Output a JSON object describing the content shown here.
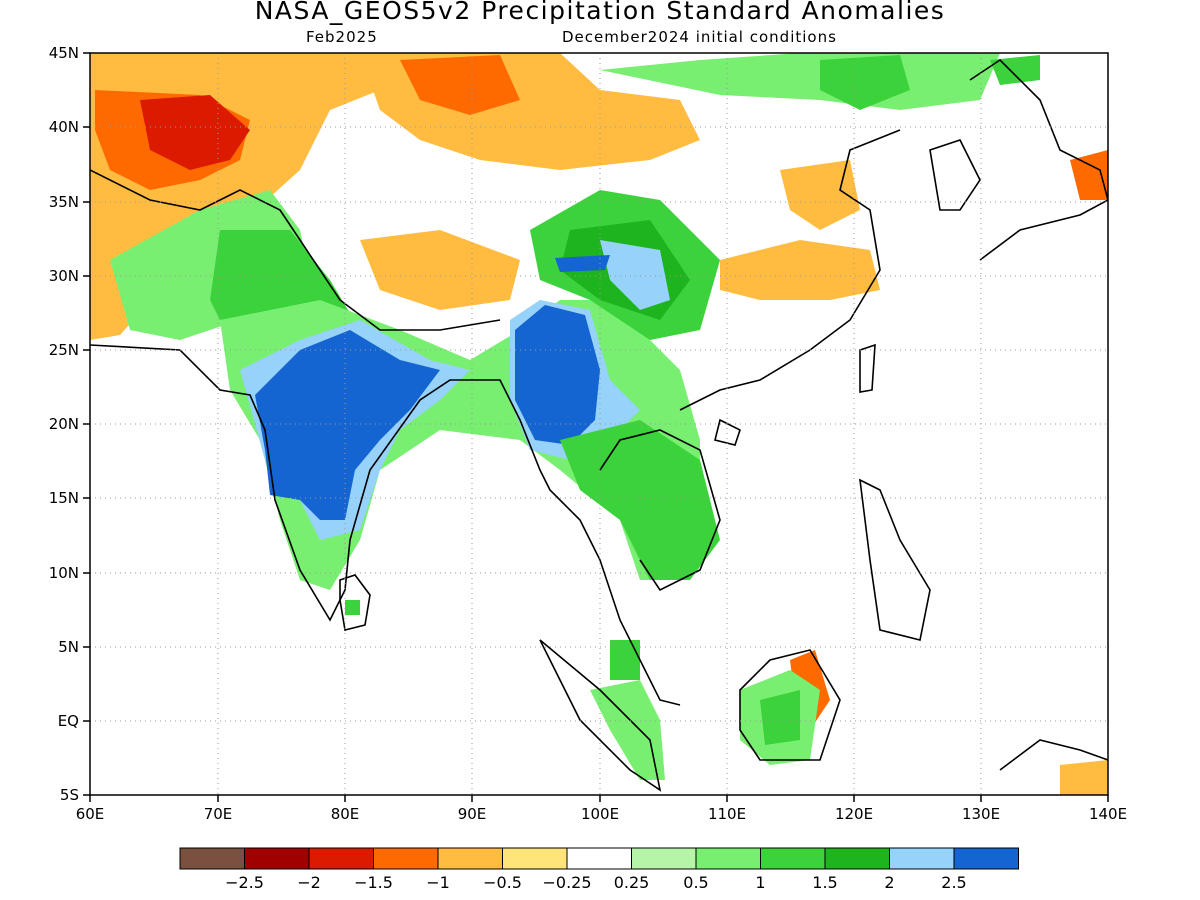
{
  "title": "NASA_GEOS5v2 Precipitation Standard Anomalies",
  "subtitle_left": "Feb2025",
  "subtitle_right": "December2024 initial conditions",
  "map": {
    "lon_range": [
      60,
      140
    ],
    "lat_range": [
      -5,
      45
    ],
    "x_ticks": [
      "60E",
      "70E",
      "80E",
      "90E",
      "100E",
      "110E",
      "120E",
      "130E",
      "140E"
    ],
    "y_ticks": [
      "5S",
      "EQ",
      "5N",
      "10N",
      "15N",
      "20N",
      "25N",
      "30N",
      "35N",
      "40N",
      "45N"
    ],
    "grid": "dotted"
  },
  "colorbar": {
    "colors": [
      "#7a5040",
      "#a00000",
      "#dc1a00",
      "#ff6a00",
      "#ffbc40",
      "#ffe47a",
      "#ffffff",
      "#b6f5a8",
      "#78ef70",
      "#3cd23c",
      "#1eb41e",
      "#96d2fa",
      "#1464d2"
    ],
    "labels": [
      "−2.5",
      "−2",
      "−1.5",
      "−1",
      "−0.5",
      "−0.25",
      "0.25",
      "0.5",
      "1",
      "1.5",
      "2",
      "2.5"
    ]
  }
}
